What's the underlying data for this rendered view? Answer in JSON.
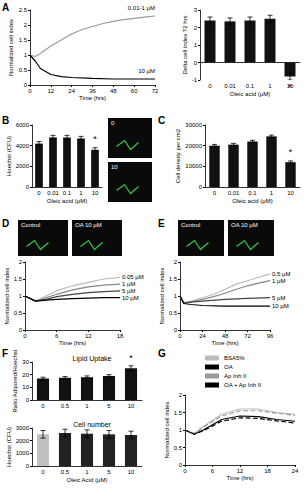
{
  "chart_data": [
    {
      "panel": "A",
      "type": "line",
      "x_label": "Time (hrs)",
      "y_label": "Normalized cell index",
      "xlim": [
        0,
        72
      ],
      "xticks": [
        0,
        12,
        24,
        36,
        48,
        60,
        72
      ],
      "ylim": [
        0,
        2.5
      ],
      "yticks": [
        0,
        0.5,
        1,
        1.5,
        2,
        2.5
      ],
      "series": [
        {
          "name": "0.01-1 µM",
          "color": "#999999",
          "line_style": "solid",
          "x": [
            0,
            3,
            6,
            12,
            18,
            24,
            30,
            36,
            42,
            48,
            54,
            60,
            66,
            72
          ],
          "values": [
            1,
            0.95,
            1.05,
            1.3,
            1.5,
            1.7,
            1.85,
            1.95,
            2.05,
            2.12,
            2.18,
            2.22,
            2.26,
            2.3
          ]
        },
        {
          "name": "10 µM",
          "color": "#000000",
          "line_style": "solid",
          "x": [
            0,
            3,
            6,
            12,
            18,
            24,
            36,
            48,
            60,
            72
          ],
          "values": [
            1,
            0.8,
            0.55,
            0.35,
            0.28,
            0.25,
            0.22,
            0.2,
            0.2,
            0.2
          ]
        }
      ]
    },
    {
      "type": "bar",
      "x_label": "Oleic acid (µM)",
      "y_label": "Delta cell index 72 hrs",
      "categories": [
        "0",
        "0.01",
        "0.1",
        "1",
        "10"
      ],
      "values": [
        2.4,
        2.35,
        2.4,
        2.5,
        -0.8
      ],
      "errors": [
        0.2,
        0.2,
        0.2,
        0.2,
        0.2
      ],
      "color": "#111111",
      "ylim": [
        -1,
        3
      ],
      "yticks": [
        -1,
        0,
        1,
        2,
        3
      ],
      "annotations": [
        {
          "category": "10",
          "text": "*"
        }
      ]
    },
    {
      "panel": "B",
      "type": "bar",
      "x_label": "Oleic acid (µM)",
      "y_label": "Hoechst (CFU)",
      "categories": [
        "0",
        "0.01",
        "0.1",
        "1",
        "10"
      ],
      "values": [
        4200,
        4800,
        4800,
        4700,
        3600
      ],
      "errors": [
        200,
        200,
        200,
        200,
        200
      ],
      "color": "#111111",
      "ylim": [
        0,
        6000
      ],
      "yticks": [
        0,
        2000,
        4000,
        6000
      ],
      "annotations": [
        {
          "category": "10",
          "text": "*"
        }
      ],
      "images": [
        "0",
        "10"
      ]
    },
    {
      "panel": "C",
      "type": "bar",
      "x_label": "Oleic acid (µM)",
      "y_label": "Cell density per cm2",
      "categories": [
        "0",
        "0.01",
        "0.1",
        "1",
        "10"
      ],
      "values": [
        20000,
        20500,
        22000,
        24500,
        12000
      ],
      "errors": [
        600,
        600,
        600,
        600,
        600
      ],
      "color": "#111111",
      "ylim": [
        0,
        30000
      ],
      "yticks": [
        0,
        10000,
        20000,
        30000
      ],
      "annotations": [
        {
          "category": "10",
          "text": "*"
        }
      ]
    },
    {
      "panel": "D",
      "type": "line",
      "x_label": "Time (hrs)",
      "y_label": "Normalized cell index",
      "xlim": [
        0,
        18
      ],
      "xticks": [
        0,
        6,
        12,
        18
      ],
      "ylim": [
        0,
        2
      ],
      "yticks": [
        0,
        0.5,
        1,
        1.5,
        2
      ],
      "images": [
        "Control",
        "OA 10 µM"
      ],
      "series": [
        {
          "name": "0.05 µM",
          "color": "#bbbbbb",
          "line_style": "solid",
          "x": [
            0,
            2,
            4,
            6,
            9,
            12,
            15,
            18
          ],
          "values": [
            1,
            0.85,
            1.0,
            1.15,
            1.3,
            1.4,
            1.5,
            1.55
          ]
        },
        {
          "name": "1 µM",
          "color": "#888888",
          "line_style": "solid",
          "x": [
            0,
            2,
            4,
            6,
            9,
            12,
            15,
            18
          ],
          "values": [
            1,
            0.85,
            0.95,
            1.05,
            1.18,
            1.27,
            1.32,
            1.35
          ]
        },
        {
          "name": "5 µM",
          "color": "#444444",
          "line_style": "solid",
          "x": [
            0,
            2,
            4,
            6,
            9,
            12,
            15,
            18
          ],
          "values": [
            1,
            0.85,
            0.9,
            0.98,
            1.05,
            1.1,
            1.13,
            1.15
          ]
        },
        {
          "name": "10 µM",
          "color": "#000000",
          "line_style": "solid",
          "x": [
            0,
            2,
            4,
            6,
            9,
            12,
            15,
            18
          ],
          "values": [
            1,
            0.85,
            0.88,
            0.9,
            0.92,
            0.94,
            0.95,
            0.95
          ]
        }
      ]
    },
    {
      "panel": "E",
      "type": "line",
      "x_label": "Time (hrs)",
      "y_label": "Normalized cell index",
      "xlim": [
        0,
        96
      ],
      "xticks": [
        0,
        24,
        48,
        72,
        96
      ],
      "ylim": [
        0,
        2
      ],
      "yticks": [
        0,
        0.5,
        1,
        1.5,
        2
      ],
      "images": [
        "Control",
        "OA 10 µM"
      ],
      "series": [
        {
          "name": "0.5 µM",
          "color": "#bbbbbb",
          "line_style": "solid",
          "x": [
            0,
            4,
            12,
            24,
            36,
            48,
            60,
            72,
            84,
            96
          ],
          "values": [
            1,
            0.8,
            0.85,
            0.95,
            1.05,
            1.2,
            1.35,
            1.45,
            1.55,
            1.65
          ]
        },
        {
          "name": "1 µM",
          "color": "#888888",
          "line_style": "solid",
          "x": [
            0,
            4,
            12,
            24,
            36,
            48,
            60,
            72,
            84,
            96
          ],
          "values": [
            1,
            0.8,
            0.83,
            0.9,
            0.98,
            1.08,
            1.2,
            1.3,
            1.38,
            1.45
          ]
        },
        {
          "name": "5 µM",
          "color": "#444444",
          "line_style": "solid",
          "x": [
            0,
            4,
            12,
            24,
            48,
            72,
            96
          ],
          "values": [
            1,
            0.8,
            0.82,
            0.85,
            0.9,
            0.93,
            0.95
          ]
        },
        {
          "name": "10 µM",
          "color": "#000000",
          "line_style": "solid",
          "x": [
            0,
            4,
            12,
            24,
            48,
            72,
            96
          ],
          "values": [
            1,
            0.78,
            0.75,
            0.72,
            0.7,
            0.7,
            0.7
          ]
        }
      ]
    },
    {
      "panel": "F",
      "type": "bar",
      "title": "Lipid Uptake",
      "y_label": "Ratio Adipored/Hoechst",
      "categories": [
        "0",
        "0.5",
        "1",
        "5",
        "10"
      ],
      "values": [
        17,
        17.5,
        18,
        19,
        25
      ],
      "errors": [
        1,
        1,
        1,
        1,
        2
      ],
      "color": "#111111",
      "ylim": [
        0,
        30
      ],
      "yticks": [
        0,
        10,
        20,
        30
      ],
      "annotations": [
        {
          "category": "10",
          "text": "*"
        }
      ]
    },
    {
      "type": "bar",
      "title": "Cell number",
      "x_label": "Oleic Acid (µM)",
      "y_label": "Hoechst (CFU)",
      "categories": [
        "0",
        "0.5",
        "1",
        "5",
        "10"
      ],
      "values": [
        2500,
        2600,
        2550,
        2500,
        2450
      ],
      "errors": [
        300,
        300,
        300,
        300,
        300
      ],
      "colors": [
        "#c0c0c0",
        "#222222",
        "#222222",
        "#222222",
        "#222222"
      ],
      "ylim": [
        0,
        3000
      ],
      "yticks": [
        0,
        1000,
        2000,
        3000
      ]
    },
    {
      "panel": "G",
      "type": "line",
      "x_label": "Time (hrs)",
      "y_label": "Normalized cell index",
      "legend": "top-right",
      "xlim": [
        0,
        24
      ],
      "xticks": [
        0,
        6,
        12,
        18,
        24
      ],
      "ylim": [
        0,
        2
      ],
      "yticks": [
        0,
        0.5,
        1,
        1.5,
        2
      ],
      "series": [
        {
          "name": "BSA5%",
          "color": "#bbbbbb",
          "line_style": "solid",
          "x": [
            0,
            2,
            4,
            8,
            12,
            16,
            20,
            24
          ],
          "values": [
            1,
            0.9,
            1.1,
            1.45,
            1.6,
            1.6,
            1.5,
            1.45
          ]
        },
        {
          "name": "OA",
          "color": "#000000",
          "line_style": "solid",
          "x": [
            0,
            2,
            4,
            8,
            12,
            16,
            20,
            24
          ],
          "values": [
            1,
            0.88,
            1.0,
            1.3,
            1.4,
            1.38,
            1.3,
            1.25
          ]
        },
        {
          "name": "Ap Inh II",
          "color": "#999999",
          "line_style": "dashed",
          "x": [
            0,
            2,
            4,
            8,
            12,
            16,
            20,
            24
          ],
          "values": [
            1,
            0.9,
            1.08,
            1.4,
            1.55,
            1.55,
            1.48,
            1.42
          ]
        },
        {
          "name": "OA + Ap Inh II",
          "color": "#000000",
          "line_style": "dashed",
          "x": [
            0,
            2,
            4,
            8,
            12,
            16,
            20,
            24
          ],
          "values": [
            1,
            0.88,
            0.98,
            1.25,
            1.35,
            1.33,
            1.26,
            1.2
          ]
        }
      ]
    }
  ]
}
